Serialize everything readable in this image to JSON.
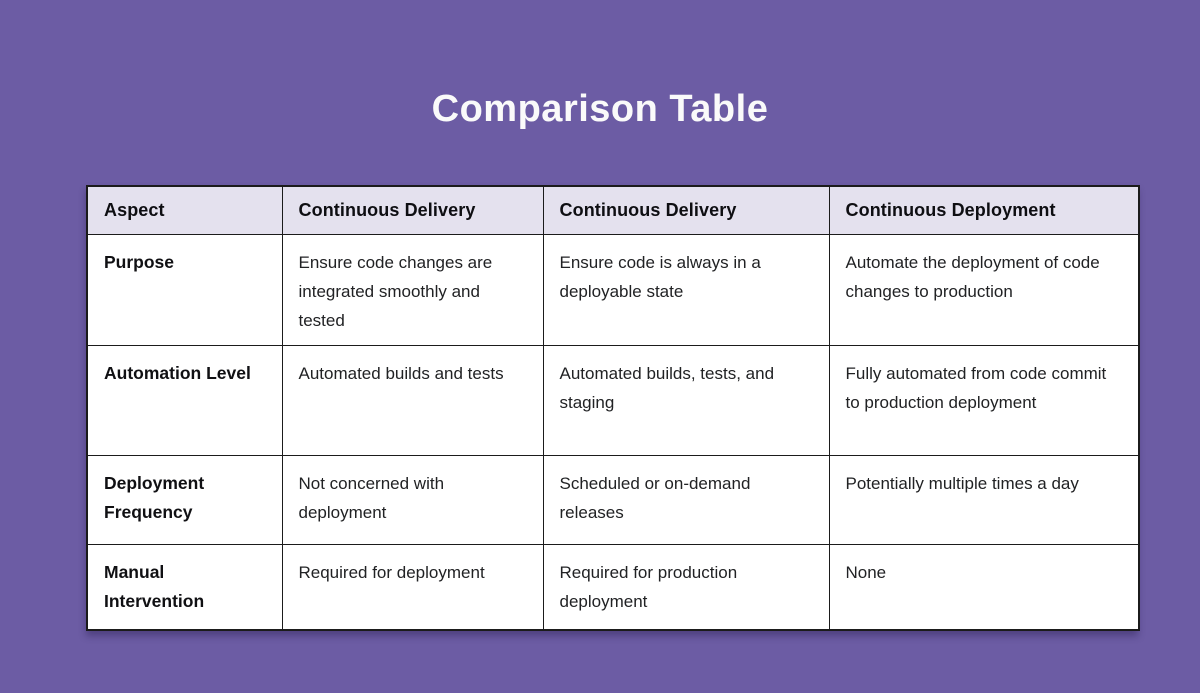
{
  "title": "Comparison Table",
  "colors": {
    "page_background": "#6C5CA4",
    "header_row_background": "#E4E1EE",
    "cell_background": "#FFFFFF",
    "table_border": "#1B1B1B",
    "title_text": "#FAFAFA",
    "body_text": "#212224"
  },
  "table": {
    "columns": [
      {
        "label": "Aspect"
      },
      {
        "label": "Continuous Delivery"
      },
      {
        "label": "Continuous Delivery"
      },
      {
        "label": "Continuous Deployment"
      }
    ],
    "rows": [
      {
        "aspect": "Purpose",
        "cells": [
          "Ensure code changes are integrated smoothly and tested",
          "Ensure code is always in a deployable state",
          "Automate the deployment of code changes to production"
        ]
      },
      {
        "aspect": "Automation Level",
        "cells": [
          "Automated builds and tests",
          "Automated builds, tests, and staging",
          "Fully automated from code commit to production deployment"
        ]
      },
      {
        "aspect": "Deployment Frequency",
        "cells": [
          "Not concerned with deployment",
          "Scheduled or on-demand releases",
          "Potentially multiple times a day"
        ]
      },
      {
        "aspect": "Manual Intervention",
        "cells": [
          "Required for deployment",
          "Required for production deployment",
          "None"
        ]
      }
    ]
  }
}
